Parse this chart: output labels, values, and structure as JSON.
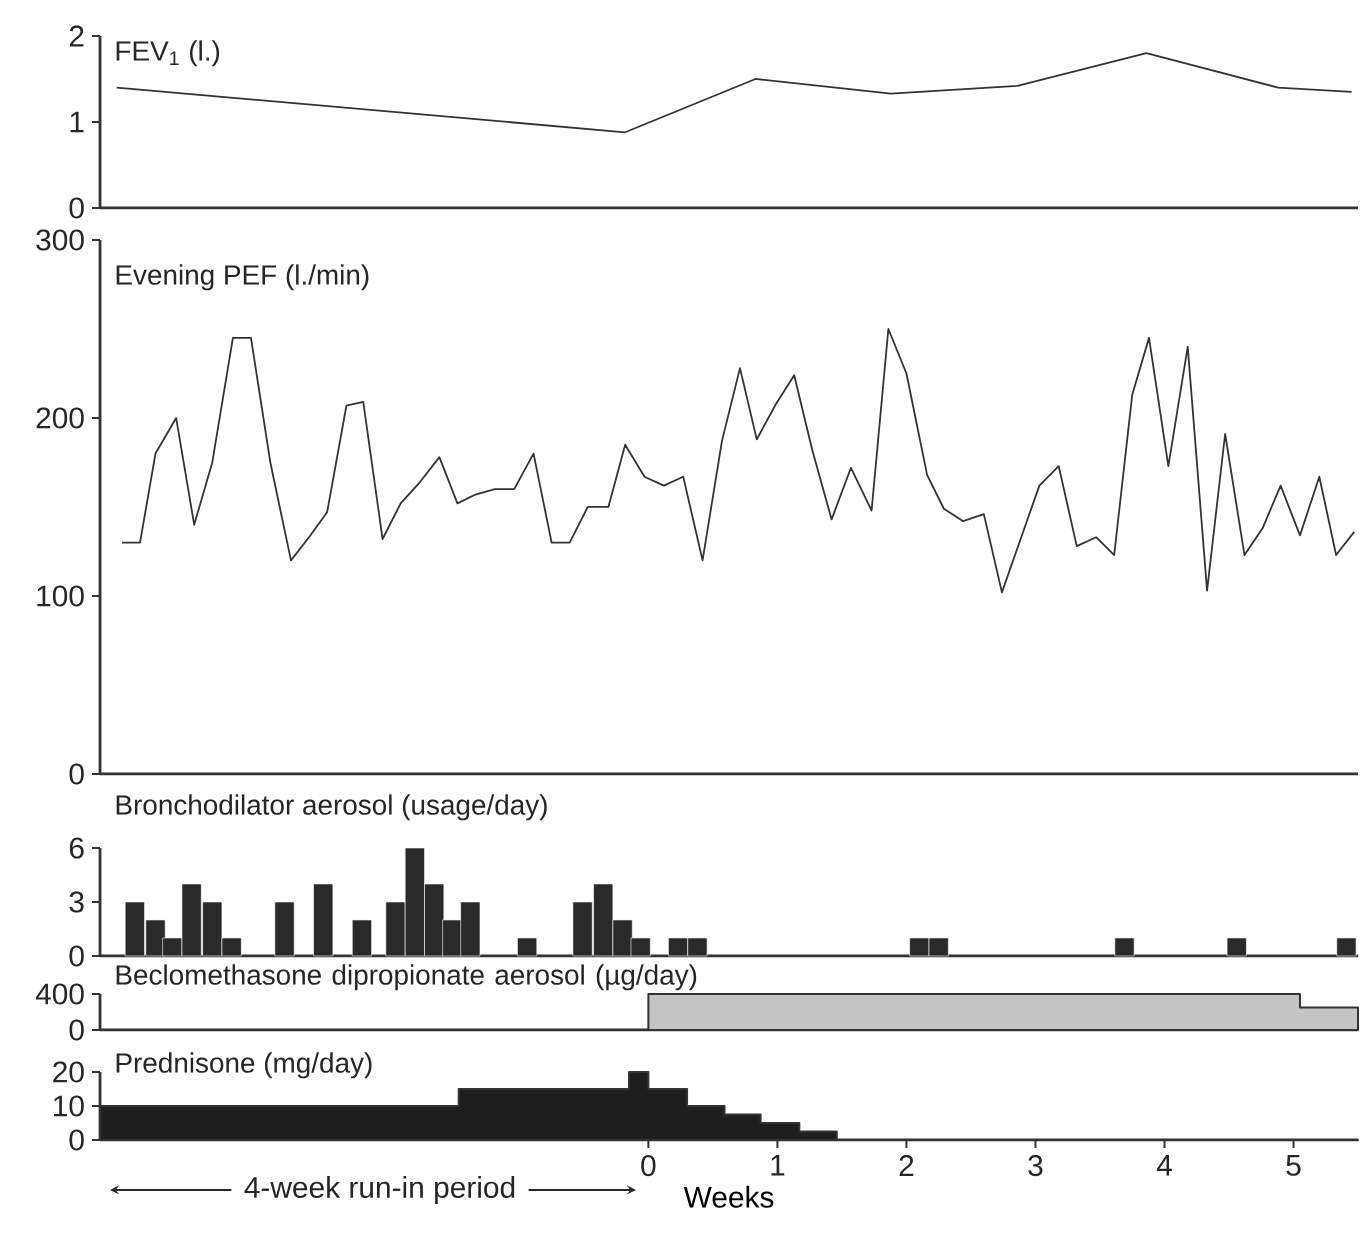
{
  "chart_data": [
    {
      "type": "line",
      "title": "FEV$_{1}$ (l.)",
      "color": "#333333",
      "xlim": [
        -4.25,
        5.5
      ],
      "ylim": [
        0,
        2
      ],
      "yticks": [
        0,
        1,
        2
      ],
      "tick_labels": "y",
      "x": [
        -4.12,
        -0.18,
        0.83,
        1.88,
        2.86,
        3.86,
        4.88,
        5.45
      ],
      "values": [
        1.4,
        0.88,
        1.5,
        1.33,
        1.42,
        1.8,
        1.4,
        1.35
      ]
    },
    {
      "type": "line",
      "title": "Evening PEF (l./min)",
      "color": "#333333",
      "xlim": [
        -4.25,
        5.5
      ],
      "ylim": [
        0,
        300
      ],
      "yticks": [
        0,
        100,
        200,
        300
      ],
      "tick_labels": "y",
      "x": [
        -4.08,
        -3.94,
        -3.82,
        -3.66,
        -3.52,
        -3.38,
        -3.22,
        -3.08,
        -2.93,
        -2.77,
        -2.63,
        -2.49,
        -2.34,
        -2.21,
        -2.06,
        -1.92,
        -1.77,
        -1.62,
        -1.48,
        -1.34,
        -1.19,
        -1.04,
        -0.89,
        -0.75,
        -0.61,
        -0.47,
        -0.31,
        -0.18,
        -0.03,
        0.12,
        0.27,
        0.42,
        0.57,
        0.71,
        0.84,
        0.99,
        1.13,
        1.27,
        1.42,
        1.57,
        1.73,
        1.86,
        2.0,
        2.16,
        2.29,
        2.44,
        2.6,
        2.74,
        2.89,
        3.03,
        3.18,
        3.32,
        3.47,
        3.61,
        3.75,
        3.88,
        4.03,
        4.18,
        4.33,
        4.47,
        4.62,
        4.76,
        4.9,
        5.05,
        5.2,
        5.33,
        5.47
      ],
      "values": [
        130,
        130,
        180,
        200,
        140,
        175,
        245,
        245,
        175,
        120,
        133,
        147,
        207,
        209,
        132,
        152,
        164,
        178,
        152,
        157,
        160,
        160,
        180,
        130,
        130,
        150,
        150,
        185,
        167,
        162,
        167,
        120,
        187,
        228,
        188,
        208,
        224,
        182,
        143,
        172,
        148,
        250,
        225,
        168,
        149,
        142,
        146,
        102,
        133,
        162,
        173,
        128,
        133,
        123,
        213,
        245,
        173,
        240,
        103,
        191,
        123,
        138,
        162,
        134,
        167,
        123,
        136
      ]
    },
    {
      "type": "bar",
      "title": "Bronchodilator aerosol (usage/day)",
      "color": "#2a2a2a",
      "xlim": [
        -4.25,
        5.5
      ],
      "ylim": [
        0,
        6
      ],
      "yticks": [
        0,
        3,
        6
      ],
      "tick_labels": "y",
      "x": [
        -3.98,
        -3.82,
        -3.69,
        -3.54,
        -3.38,
        -3.23,
        -2.82,
        -2.52,
        -2.22,
        -1.96,
        -1.81,
        -1.66,
        -1.52,
        -1.38,
        -0.94,
        -0.51,
        -0.35,
        -0.2,
        -0.06,
        0.23,
        0.38,
        2.1,
        2.25,
        3.69,
        4.56,
        5.41
      ],
      "values": [
        3,
        2,
        1,
        4,
        3,
        1,
        3,
        4,
        2,
        3,
        6,
        4,
        2,
        3,
        1,
        3,
        4,
        2,
        1,
        1,
        1,
        1,
        1,
        1,
        1,
        1
      ]
    },
    {
      "type": "area",
      "title": "Beclomethasone dipropionate aerosol (µg/day)",
      "color": "#c4c4c4",
      "xlim": [
        -4.25,
        5.5
      ],
      "ylim": [
        0,
        400
      ],
      "yticks": [
        0,
        400
      ],
      "tick_labels": "y",
      "x": [
        0,
        5.05,
        5.05,
        5.5
      ],
      "values": [
        400,
        400,
        250,
        250
      ]
    },
    {
      "type": "area",
      "title": "Prednisone (mg/day)",
      "color": "#1e1e1e",
      "xlim": [
        -4.25,
        5.5
      ],
      "ylim": [
        0,
        20
      ],
      "yticks": [
        0,
        10,
        20
      ],
      "xticks": [
        0,
        1,
        2,
        3,
        4,
        5
      ],
      "xlabel": "Weeks",
      "annotations": [
        "4-week run-in period"
      ],
      "x": [
        -4.25,
        -1.47,
        -1.47,
        -0.15,
        -0.15,
        0,
        0,
        0.3,
        0.3,
        0.59,
        0.59,
        0.87,
        0.87,
        1.17,
        1.17,
        1.46,
        1.46,
        5.5
      ],
      "values": [
        10,
        10,
        15,
        15,
        20,
        20,
        15,
        15,
        10,
        10,
        7.5,
        7.5,
        5,
        5,
        2.5,
        2.5,
        0,
        0
      ]
    }
  ]
}
